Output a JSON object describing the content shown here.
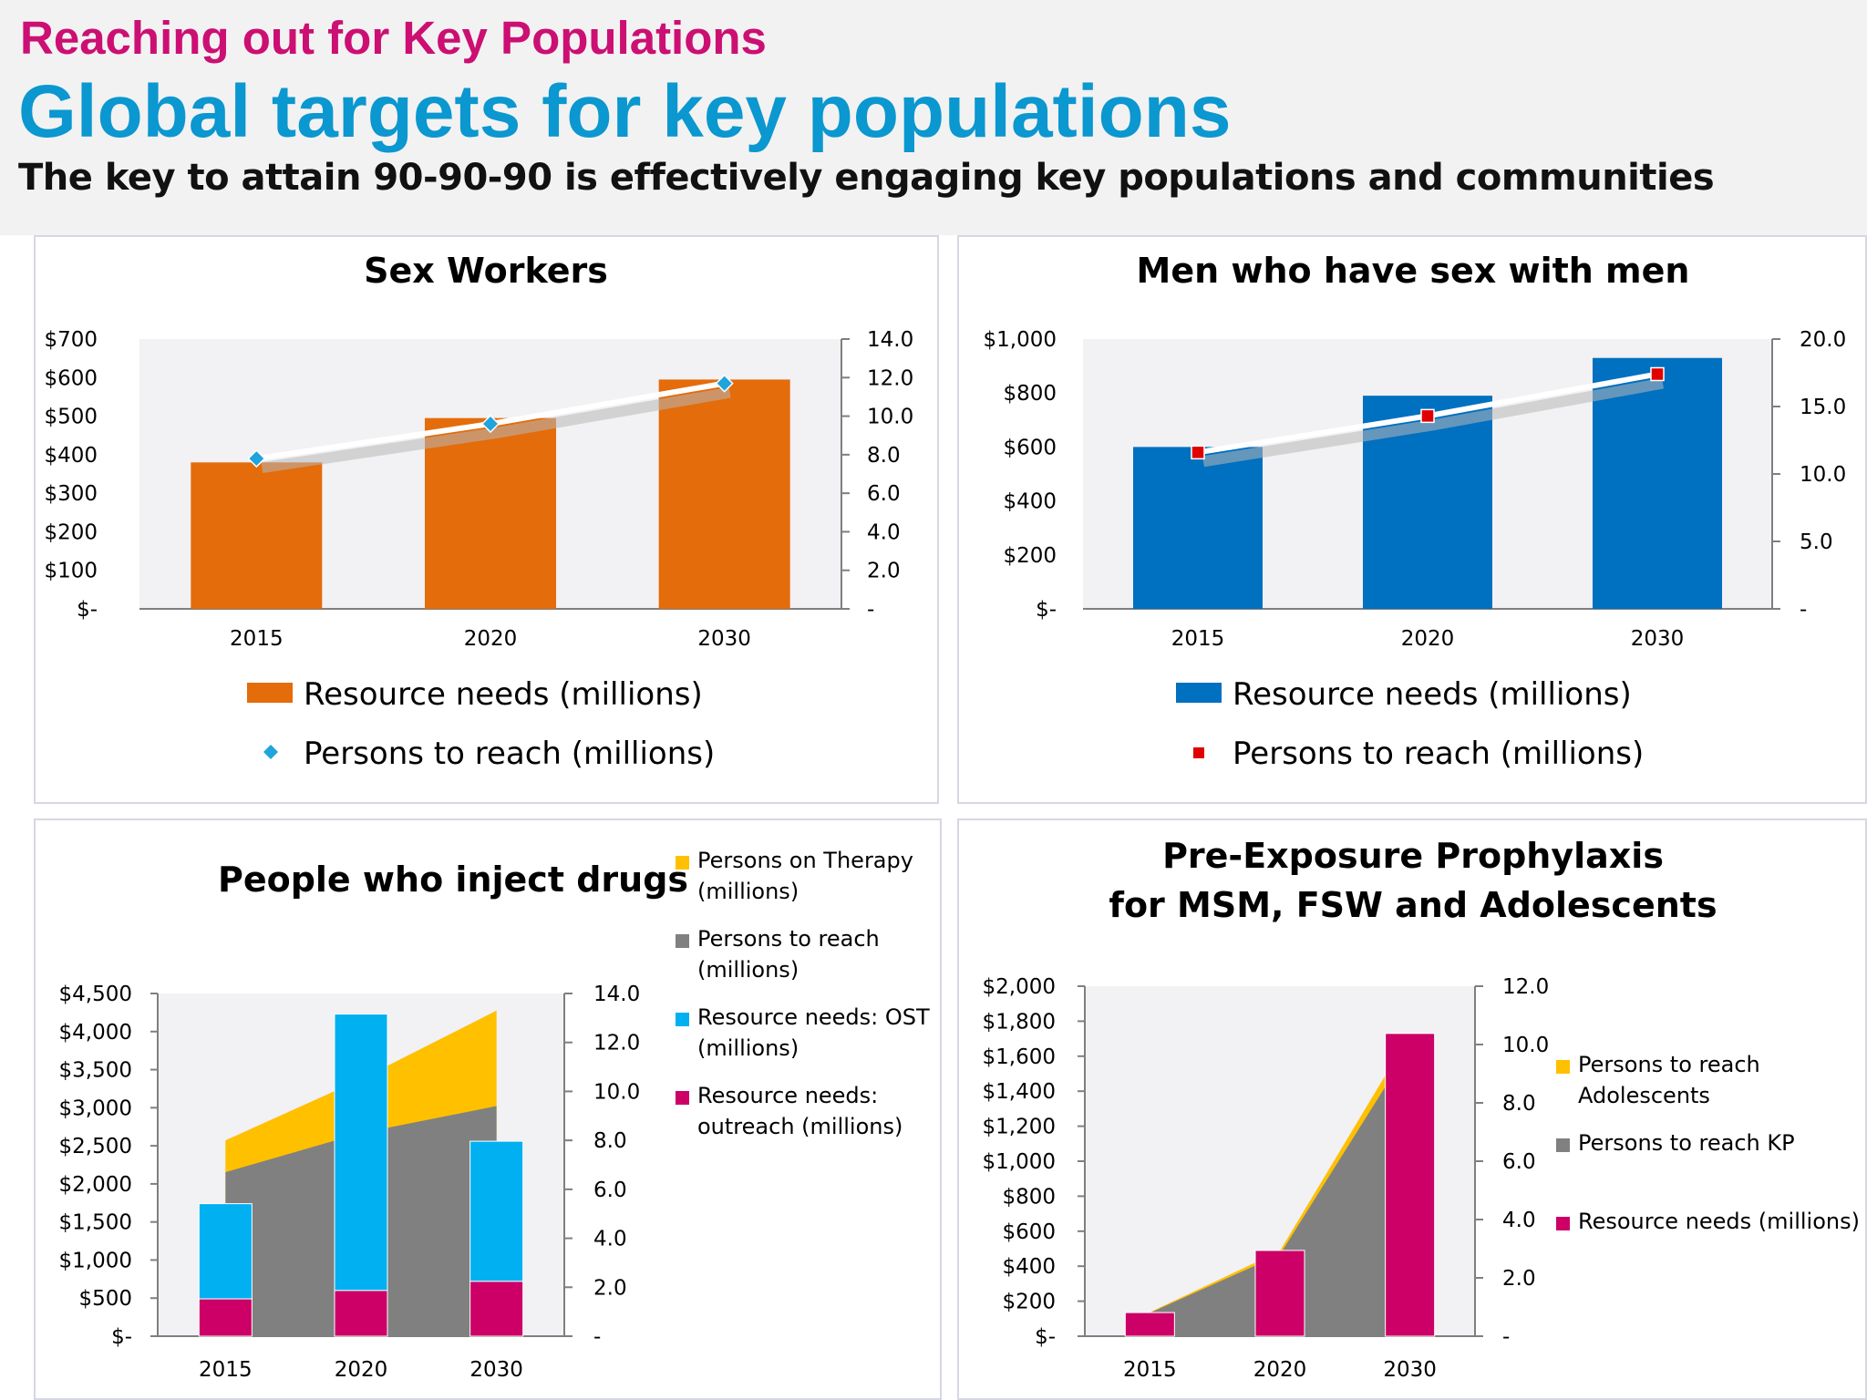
{
  "header": {
    "kicker": "Reaching out for Key Populations",
    "title": "Global targets for key populations",
    "subtitle": "The key to attain 90-90-90 is effectively engaging key populations and communities"
  },
  "colors": {
    "kicker": "#cc0f73",
    "title": "#0b97cf",
    "orange": "#e46c0a",
    "cyan_marker": "#1fa4dc",
    "blue": "#0070c0",
    "red_marker": "#e00000",
    "ost_cyan": "#00b0f0",
    "magenta": "#cc0066",
    "gold": "#ffc000",
    "grey_area": "#808080",
    "plot_bg": "#f2f1f3"
  },
  "chart_data": [
    {
      "id": "sw",
      "type": "bar",
      "title": "Sex Workers",
      "categories": [
        "2015",
        "2020",
        "2030"
      ],
      "series": [
        {
          "name": "Resource needs (millions)",
          "type": "bar",
          "axis": "left",
          "values": [
            380,
            495,
            595
          ]
        },
        {
          "name": "Persons to reach (millions)",
          "type": "line",
          "axis": "right",
          "marker": "diamond",
          "values": [
            7.8,
            9.6,
            11.7
          ]
        }
      ],
      "left_axis": {
        "min": 0,
        "max": 700,
        "ticks": [
          "$-",
          "$100",
          "$200",
          "$300",
          "$400",
          "$500",
          "$600",
          "$700"
        ]
      },
      "right_axis": {
        "min": 0,
        "max": 14,
        "ticks": [
          "-",
          "2.0",
          "4.0",
          "6.0",
          "8.0",
          "10.0",
          "12.0",
          "14.0"
        ]
      },
      "legend": [
        "Resource needs (millions)",
        "Persons to reach (millions)"
      ],
      "legend_position": "bottom"
    },
    {
      "id": "msm",
      "type": "bar",
      "title": "Men who have sex with men",
      "categories": [
        "2015",
        "2020",
        "2030"
      ],
      "series": [
        {
          "name": "Resource needs (millions)",
          "type": "bar",
          "axis": "left",
          "values": [
            600,
            790,
            930
          ]
        },
        {
          "name": "Persons to reach (millions)",
          "type": "line",
          "axis": "right",
          "marker": "square",
          "values": [
            11.6,
            14.3,
            17.4
          ]
        }
      ],
      "left_axis": {
        "min": 0,
        "max": 1000,
        "ticks": [
          "$-",
          "$200",
          "$400",
          "$600",
          "$800",
          "$1,000"
        ]
      },
      "right_axis": {
        "min": 0,
        "max": 20,
        "ticks": [
          "-",
          "5.0",
          "10.0",
          "15.0",
          "20.0"
        ]
      },
      "legend": [
        "Resource needs (millions)",
        "Persons to reach (millions)"
      ],
      "legend_position": "bottom"
    },
    {
      "id": "pwid",
      "type": "bar",
      "title": "People who inject drugs",
      "categories": [
        "2015",
        "2020",
        "2030"
      ],
      "series": [
        {
          "name": "Persons on Therapy (millions)",
          "type": "area",
          "axis": "right",
          "stacked": true,
          "values": [
            1.3,
            2.2,
            3.9
          ]
        },
        {
          "name": "Persons to reach (millions)",
          "type": "area",
          "axis": "right",
          "values": [
            6.7,
            8.3,
            9.4
          ]
        },
        {
          "name": "Resource needs: OST (millions)",
          "type": "bar",
          "axis": "left",
          "stacked": true,
          "values": [
            1250,
            3630,
            1840
          ]
        },
        {
          "name": "Resource needs: outreach (millions)",
          "type": "bar",
          "axis": "left",
          "stacked": true,
          "values": [
            490,
            600,
            720
          ]
        }
      ],
      "left_axis": {
        "min": 0,
        "max": 4500,
        "ticks": [
          "$-",
          "$500",
          "$1,000",
          "$1,500",
          "$2,000",
          "$2,500",
          "$3,000",
          "$3,500",
          "$4,000",
          "$4,500"
        ]
      },
      "right_axis": {
        "min": 0,
        "max": 14,
        "ticks": [
          "-",
          "2.0",
          "4.0",
          "6.0",
          "8.0",
          "10.0",
          "12.0",
          "14.0"
        ]
      },
      "legend": [
        {
          "line1": "Persons on Therapy",
          "line2": "(millions)"
        },
        {
          "line1": "Persons to reach",
          "line2": "(millions)"
        },
        {
          "line1": "Resource needs: OST",
          "line2": "(millions)"
        },
        {
          "line1": "Resource needs:",
          "line2": "outreach (millions)"
        }
      ],
      "legend_position": "right"
    },
    {
      "id": "prep",
      "type": "bar",
      "title": "Pre-Exposure Prophylaxis",
      "title_line2": "for MSM, FSW and Adolescents",
      "categories": [
        "2015",
        "2020",
        "2030"
      ],
      "series": [
        {
          "name": "Persons to reach Adolescents",
          "type": "area",
          "axis": "right",
          "stacked": true,
          "values": [
            0.02,
            0.12,
            0.45
          ]
        },
        {
          "name": "Persons to reach KP",
          "type": "area",
          "axis": "right",
          "values": [
            0.8,
            2.8,
            9.9
          ]
        },
        {
          "name": "Resource needs (millions)",
          "type": "bar",
          "axis": "left",
          "values": [
            135,
            490,
            1730
          ]
        }
      ],
      "left_axis": {
        "min": 0,
        "max": 2000,
        "ticks": [
          "$-",
          "$200",
          "$400",
          "$600",
          "$800",
          "$1,000",
          "$1,200",
          "$1,400",
          "$1,600",
          "$1,800",
          "$2,000"
        ]
      },
      "right_axis": {
        "min": 0,
        "max": 12,
        "ticks": [
          "-",
          "2.0",
          "4.0",
          "6.0",
          "8.0",
          "10.0",
          "12.0"
        ]
      },
      "legend": [
        {
          "line1": "Persons to reach",
          "line2": "Adolescents"
        },
        {
          "line1": "Persons to reach KP",
          "line2": ""
        },
        {
          "line1": "Resource needs (millions)",
          "line2": ""
        }
      ],
      "legend_position": "right"
    }
  ]
}
